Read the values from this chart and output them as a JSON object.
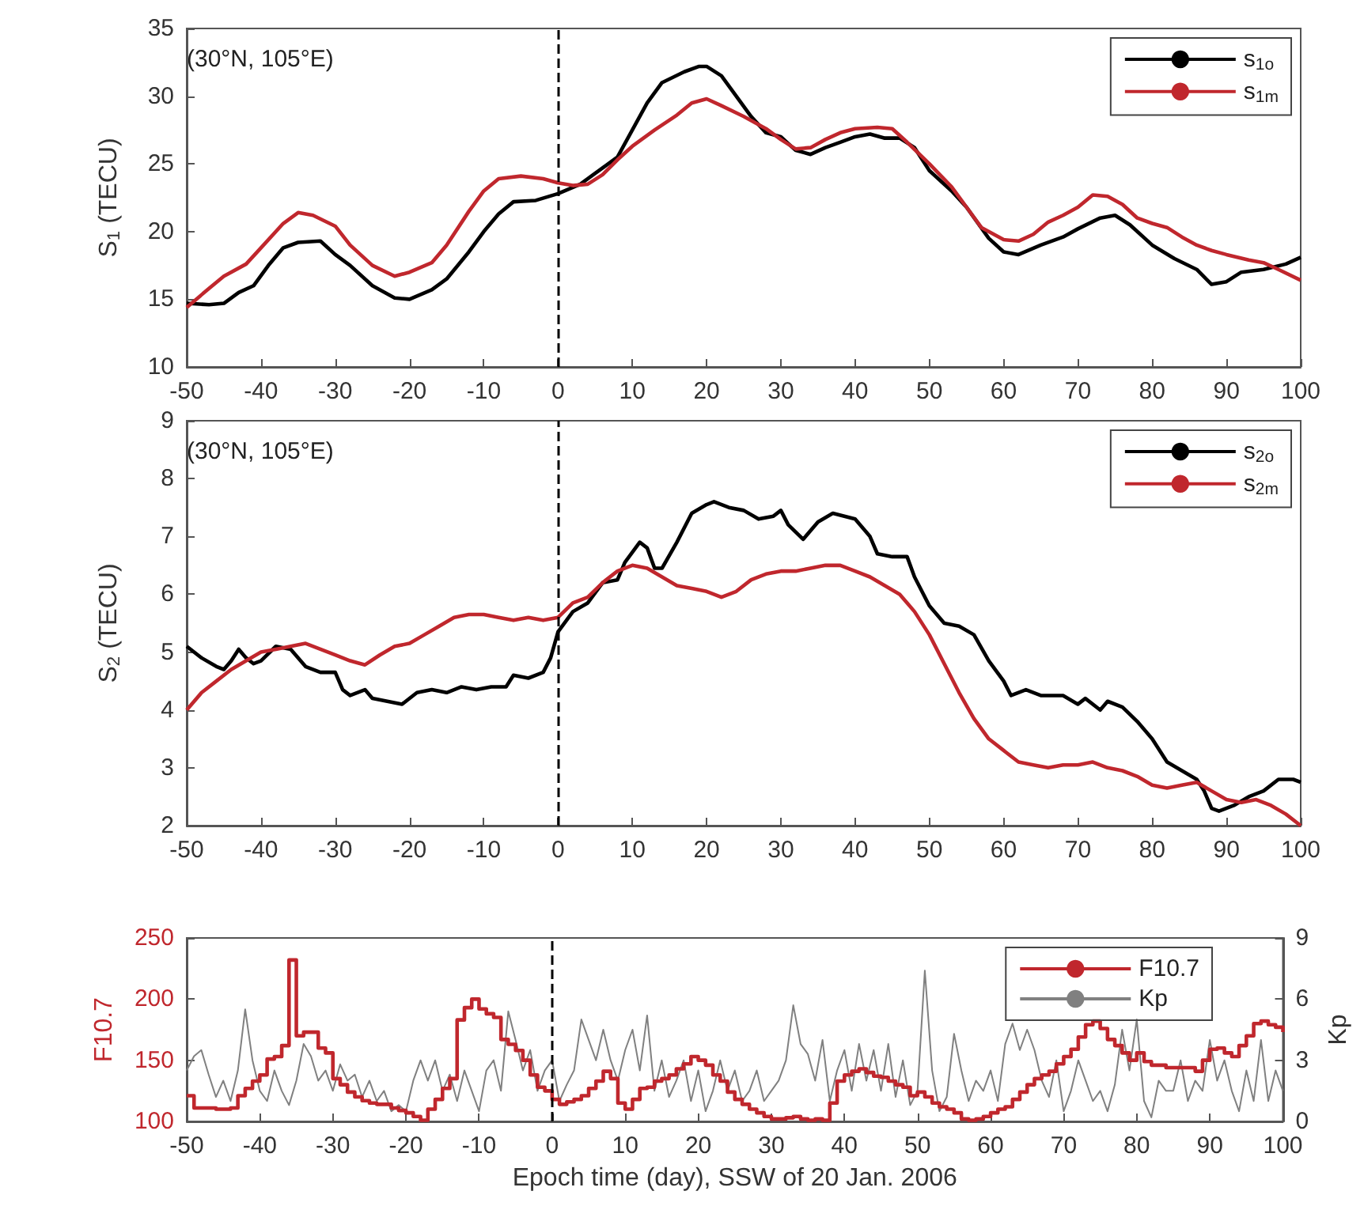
{
  "chart_data": [
    {
      "type": "line",
      "ylabel": "S$_{1}$ (TECU)",
      "annotations": [
        "(30°N, 105°E)"
      ],
      "xlim": [
        -50,
        100
      ],
      "xticks": [
        -50,
        -40,
        -30,
        -20,
        -10,
        0,
        10,
        20,
        30,
        40,
        50,
        60,
        70,
        80,
        90,
        100
      ],
      "ylim": [
        10,
        35
      ],
      "yticks": [
        10,
        15,
        20,
        25,
        30,
        35
      ],
      "legend": "top right",
      "marker": "none",
      "grid": false,
      "ref_lines": [
        {
          "axis": "x",
          "value": 0,
          "color": "#000000",
          "line_style": "dashed"
        }
      ],
      "series": [
        {
          "name": "s$_{1o}$",
          "color": "#000000",
          "x": [
            -50,
            -47,
            -45,
            -43,
            -41,
            -39,
            -37,
            -35,
            -32,
            -30,
            -28,
            -25,
            -22,
            -20,
            -17,
            -15,
            -12,
            -10,
            -8,
            -6,
            -3,
            0,
            3,
            5,
            8,
            10,
            12,
            14,
            17,
            19,
            20,
            22,
            24,
            26,
            28,
            30,
            32,
            34,
            36,
            38,
            40,
            42,
            44,
            46,
            48,
            50,
            53,
            55,
            58,
            60,
            62,
            65,
            68,
            70,
            73,
            75,
            77,
            80,
            83,
            86,
            88,
            90,
            92,
            95,
            98,
            100
          ],
          "values": [
            14.7,
            14.6,
            14.7,
            15.5,
            16,
            17.5,
            18.8,
            19.2,
            19.3,
            18.3,
            17.5,
            16,
            15.1,
            15,
            15.7,
            16.5,
            18.5,
            20,
            21.3,
            22.2,
            22.3,
            22.8,
            23.5,
            24.3,
            25.5,
            27.5,
            29.5,
            31,
            31.8,
            32.2,
            32.2,
            31.5,
            30,
            28.5,
            27.3,
            27,
            26,
            25.7,
            26.2,
            26.6,
            27,
            27.2,
            26.9,
            26.9,
            26.2,
            24.5,
            23,
            21.8,
            19.5,
            18.5,
            18.3,
            19,
            19.6,
            20.2,
            21,
            21.2,
            20.5,
            19,
            18,
            17.2,
            16.1,
            16.3,
            17,
            17.2,
            17.6,
            18.1
          ]
        },
        {
          "name": "s$_{1m}$",
          "color": "#c0272d",
          "x": [
            -50,
            -47,
            -45,
            -42,
            -40,
            -37,
            -35,
            -33,
            -30,
            -28,
            -25,
            -22,
            -20,
            -17,
            -15,
            -12,
            -10,
            -8,
            -5,
            -2,
            0,
            2,
            4,
            6,
            8,
            10,
            13,
            16,
            18,
            20,
            22,
            25,
            28,
            30,
            32,
            34,
            36,
            38,
            40,
            43,
            45,
            47,
            50,
            53,
            55,
            57,
            60,
            62,
            64,
            66,
            68,
            70,
            72,
            74,
            76,
            78,
            80,
            82,
            84,
            86,
            88,
            90,
            93,
            95,
            97,
            100
          ],
          "values": [
            14.4,
            15.8,
            16.7,
            17.6,
            18.8,
            20.6,
            21.4,
            21.2,
            20.4,
            19,
            17.5,
            16.7,
            17,
            17.7,
            19,
            21.5,
            23,
            23.9,
            24.1,
            23.9,
            23.6,
            23.4,
            23.5,
            24.2,
            25.3,
            26.3,
            27.5,
            28.6,
            29.5,
            29.8,
            29.3,
            28.5,
            27.6,
            26.8,
            26.1,
            26.2,
            26.8,
            27.3,
            27.6,
            27.7,
            27.6,
            26.6,
            25,
            23.3,
            21.8,
            20.3,
            19.4,
            19.3,
            19.8,
            20.7,
            21.2,
            21.8,
            22.7,
            22.6,
            22,
            21,
            20.6,
            20.3,
            19.6,
            19,
            18.6,
            18.3,
            17.9,
            17.7,
            17.2,
            16.4
          ]
        }
      ]
    },
    {
      "type": "line",
      "ylabel": "S$_{2}$ (TECU)",
      "annotations": [
        "(30°N, 105°E)"
      ],
      "xlim": [
        -50,
        100
      ],
      "xticks": [
        -50,
        -40,
        -30,
        -20,
        -10,
        0,
        10,
        20,
        30,
        40,
        50,
        60,
        70,
        80,
        90,
        100
      ],
      "ylim": [
        2,
        9
      ],
      "yticks": [
        2,
        3,
        4,
        5,
        6,
        7,
        8,
        9
      ],
      "legend": "top right",
      "marker": "none",
      "grid": false,
      "ref_lines": [
        {
          "axis": "x",
          "value": 0,
          "color": "#000000",
          "line_style": "dashed"
        }
      ],
      "series": [
        {
          "name": "s$_{2o}$",
          "color": "#000000",
          "x": [
            -50,
            -48,
            -46,
            -45,
            -44,
            -43,
            -42,
            -41,
            -40,
            -38,
            -36,
            -34,
            -32,
            -30,
            -29,
            -28,
            -26,
            -25,
            -23,
            -21,
            -19,
            -17,
            -15,
            -13,
            -11,
            -9,
            -7,
            -6,
            -4,
            -2,
            -1,
            0,
            2,
            4,
            6,
            8,
            9,
            11,
            12,
            13,
            14,
            16,
            18,
            20,
            21,
            23,
            25,
            27,
            29,
            30,
            31,
            33,
            35,
            37,
            40,
            42,
            43,
            45,
            47,
            48,
            50,
            52,
            54,
            56,
            58,
            60,
            61,
            63,
            65,
            68,
            70,
            71,
            73,
            74,
            76,
            78,
            80,
            82,
            84,
            86,
            87,
            88,
            89,
            91,
            93,
            95,
            97,
            99,
            100
          ],
          "values": [
            5.1,
            4.9,
            4.75,
            4.7,
            4.85,
            5.05,
            4.9,
            4.8,
            4.85,
            5.1,
            5.05,
            4.75,
            4.65,
            4.65,
            4.35,
            4.25,
            4.35,
            4.2,
            4.15,
            4.1,
            4.3,
            4.35,
            4.3,
            4.4,
            4.35,
            4.4,
            4.4,
            4.6,
            4.55,
            4.65,
            4.9,
            5.35,
            5.7,
            5.85,
            6.2,
            6.25,
            6.55,
            6.9,
            6.8,
            6.45,
            6.45,
            6.9,
            7.4,
            7.55,
            7.6,
            7.5,
            7.45,
            7.3,
            7.35,
            7.45,
            7.2,
            6.95,
            7.25,
            7.4,
            7.3,
            7,
            6.7,
            6.65,
            6.65,
            6.3,
            5.8,
            5.5,
            5.45,
            5.3,
            4.85,
            4.5,
            4.25,
            4.35,
            4.25,
            4.25,
            4.1,
            4.2,
            4,
            4.15,
            4.05,
            3.8,
            3.5,
            3.1,
            2.95,
            2.8,
            2.6,
            2.3,
            2.25,
            2.35,
            2.5,
            2.6,
            2.8,
            2.8,
            2.75
          ]
        },
        {
          "name": "s$_{2m}$",
          "color": "#c0272d",
          "x": [
            -50,
            -48,
            -46,
            -44,
            -42,
            -40,
            -38,
            -36,
            -34,
            -32,
            -30,
            -28,
            -26,
            -24,
            -22,
            -20,
            -18,
            -16,
            -14,
            -12,
            -10,
            -8,
            -6,
            -4,
            -2,
            0,
            2,
            4,
            6,
            8,
            10,
            12,
            14,
            16,
            18,
            20,
            22,
            24,
            26,
            28,
            30,
            32,
            34,
            36,
            38,
            40,
            42,
            44,
            46,
            48,
            50,
            52,
            54,
            56,
            58,
            60,
            62,
            64,
            66,
            68,
            70,
            72,
            74,
            76,
            78,
            80,
            82,
            84,
            86,
            88,
            90,
            92,
            94,
            96,
            98,
            100
          ],
          "values": [
            4,
            4.3,
            4.5,
            4.7,
            4.85,
            5,
            5.05,
            5.1,
            5.15,
            5.05,
            4.95,
            4.85,
            4.78,
            4.95,
            5.1,
            5.15,
            5.3,
            5.45,
            5.6,
            5.65,
            5.65,
            5.6,
            5.55,
            5.6,
            5.55,
            5.6,
            5.85,
            5.95,
            6.2,
            6.4,
            6.5,
            6.45,
            6.3,
            6.15,
            6.1,
            6.05,
            5.95,
            6.05,
            6.25,
            6.35,
            6.4,
            6.4,
            6.45,
            6.5,
            6.5,
            6.4,
            6.3,
            6.15,
            6,
            5.7,
            5.3,
            4.8,
            4.3,
            3.85,
            3.5,
            3.3,
            3.1,
            3.05,
            3,
            3.05,
            3.05,
            3.1,
            3,
            2.95,
            2.85,
            2.7,
            2.65,
            2.7,
            2.75,
            2.6,
            2.45,
            2.4,
            2.45,
            2.35,
            2.2,
            2
          ]
        }
      ]
    },
    {
      "type": "line",
      "xlabel": "Epoch time (day), SSW of 20 Jan. 2006",
      "ylabel": "F10.7",
      "y2label": "Kp",
      "xlim": [
        -50,
        100
      ],
      "xticks": [
        -50,
        -40,
        -30,
        -20,
        -10,
        0,
        10,
        20,
        30,
        40,
        50,
        60,
        70,
        80,
        90,
        100
      ],
      "ylim": [
        100,
        250
      ],
      "yticks": [
        100,
        150,
        200,
        250
      ],
      "y2lim": [
        0,
        9
      ],
      "y2ticks": [
        0,
        3,
        6,
        9
      ],
      "legend": "top right",
      "marker": "none",
      "grid": false,
      "ref_lines": [
        {
          "axis": "x",
          "value": 0,
          "color": "#000000",
          "line_style": "dashed"
        }
      ],
      "x": [
        -50,
        -49,
        -48,
        -47,
        -46,
        -45,
        -44,
        -43,
        -42,
        -41,
        -40,
        -39,
        -38,
        -37,
        -36,
        -35,
        -34,
        -33,
        -32,
        -31,
        -30,
        -29,
        -28,
        -27,
        -26,
        -25,
        -24,
        -23,
        -22,
        -21,
        -20,
        -19,
        -18,
        -17,
        -16,
        -15,
        -14,
        -13,
        -12,
        -11,
        -10,
        -9,
        -8,
        -7,
        -6,
        -5,
        -4,
        -3,
        -2,
        -1,
        0,
        1,
        2,
        3,
        4,
        5,
        6,
        7,
        8,
        9,
        10,
        11,
        12,
        13,
        14,
        15,
        16,
        17,
        18,
        19,
        20,
        21,
        22,
        23,
        24,
        25,
        26,
        27,
        28,
        29,
        30,
        31,
        32,
        33,
        34,
        35,
        36,
        37,
        38,
        39,
        40,
        41,
        42,
        43,
        44,
        45,
        46,
        47,
        48,
        49,
        50,
        51,
        52,
        53,
        54,
        55,
        56,
        57,
        58,
        59,
        60,
        61,
        62,
        63,
        64,
        65,
        66,
        67,
        68,
        69,
        70,
        71,
        72,
        73,
        74,
        75,
        76,
        77,
        78,
        79,
        80,
        81,
        82,
        83,
        84,
        85,
        86,
        87,
        88,
        89,
        90,
        91,
        92,
        93,
        94,
        95,
        96,
        97,
        98,
        99,
        100
      ],
      "series": [
        {
          "name": "F10.7",
          "type": "step",
          "color": "#c0272d",
          "values": [
            121,
            111,
            111,
            111,
            110,
            110,
            111,
            121,
            127,
            133,
            138,
            151,
            153,
            162,
            232,
            170,
            173,
            173,
            160,
            156,
            135,
            130,
            124,
            120,
            117,
            115,
            114,
            114,
            111,
            109,
            107,
            104,
            101,
            110,
            118,
            127,
            135,
            183,
            193,
            200,
            192,
            188,
            185,
            167,
            163,
            158,
            150,
            138,
            128,
            125,
            118,
            114,
            116,
            118,
            121,
            127,
            133,
            141,
            135,
            115,
            110,
            118,
            127,
            128,
            133,
            135,
            138,
            143,
            147,
            153,
            150,
            146,
            138,
            133,
            124,
            118,
            114,
            110,
            107,
            104,
            102,
            102,
            103,
            104,
            102,
            101,
            102,
            101,
            115,
            133,
            138,
            141,
            143,
            140,
            137,
            136,
            133,
            130,
            128,
            121,
            124,
            120,
            115,
            112,
            110,
            107,
            102,
            101,
            102,
            104,
            107,
            110,
            112,
            118,
            124,
            130,
            135,
            138,
            141,
            147,
            153,
            159,
            169,
            179,
            182,
            176,
            167,
            162,
            156,
            150,
            156,
            149,
            146,
            146,
            144,
            144,
            144,
            144,
            141,
            150,
            159,
            160,
            156,
            153,
            162,
            170,
            180,
            182,
            179,
            177,
            173
          ]
        },
        {
          "name": "Kp",
          "axis": "y2",
          "color": "#808080",
          "values": [
            2.5,
            3.2,
            3.5,
            2.3,
            1.2,
            2,
            1,
            2.5,
            5.5,
            3,
            1.5,
            1,
            2.5,
            1.5,
            0.8,
            2,
            3.8,
            3.2,
            2,
            2.5,
            1.5,
            2.8,
            2,
            2.3,
            1.2,
            2,
            1,
            1.5,
            0.5,
            0.8,
            0.5,
            2,
            3,
            2,
            3,
            1.5,
            2.3,
            1,
            2.5,
            1.5,
            0.5,
            2.5,
            3,
            1.5,
            5.4,
            4,
            2.5,
            3.5,
            1.5,
            2.5,
            3,
            1,
            1.8,
            2.5,
            5,
            4,
            3,
            4.5,
            3,
            2,
            3.5,
            4.5,
            2.5,
            5.2,
            1.5,
            3,
            1.2,
            2,
            3,
            1,
            2.5,
            0.5,
            1.5,
            3,
            1.5,
            2.5,
            1,
            1.5,
            2.5,
            1,
            1.5,
            2,
            3,
            5.7,
            3.8,
            3.3,
            2,
            4,
            1,
            2.5,
            3.5,
            1.5,
            3.8,
            2,
            3.5,
            1.5,
            3.8,
            1.2,
            3,
            0.8,
            1.5,
            7.4,
            2.5,
            0.5,
            1.2,
            4.3,
            2.5,
            1,
            2,
            1.5,
            2.5,
            1,
            3.8,
            4.8,
            3.5,
            4.5,
            3.5,
            2,
            1.2,
            3,
            0.5,
            1.5,
            3,
            2,
            1,
            1.5,
            0.5,
            1.8,
            4.5,
            2.5,
            5,
            1,
            0.2,
            2,
            1.5,
            1.5,
            3,
            1,
            2,
            1.5,
            4,
            2,
            3,
            1.5,
            0.5,
            2.5,
            1,
            4,
            1,
            2.5,
            1.5
          ]
        }
      ]
    }
  ]
}
